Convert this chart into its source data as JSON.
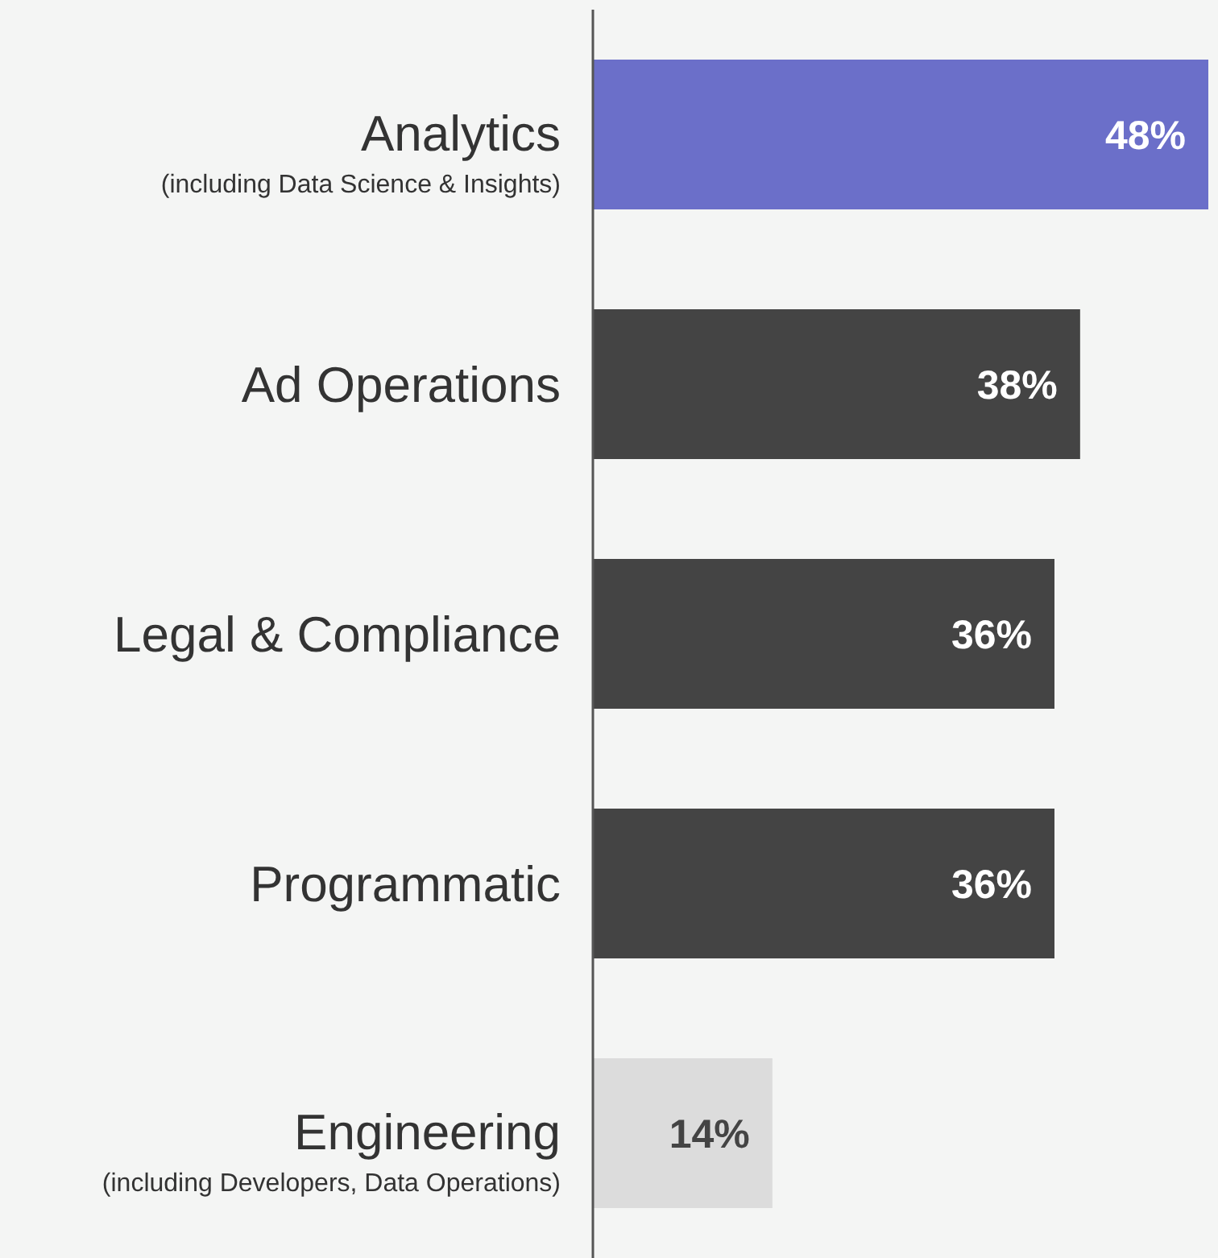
{
  "chart_data": {
    "type": "bar",
    "orientation": "horizontal",
    "categories": [
      "Analytics\n(including Data Science & Insights)",
      "Ad Operations",
      "Legal & Compliance",
      "Programmatic",
      "Engineering\n(including Developers, Data Operations)"
    ],
    "values": [
      48,
      38,
      36,
      36,
      14
    ],
    "colors": [
      "#6b6fc9",
      "#444444",
      "#444444",
      "#444444",
      "#dcdcdc"
    ],
    "value_labels": [
      "48%",
      "38%",
      "36%",
      "36%",
      "14%"
    ]
  }
}
